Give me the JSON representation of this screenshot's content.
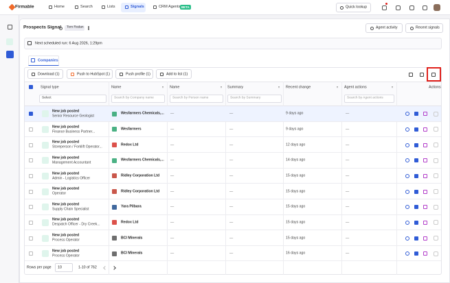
{
  "nav": {
    "brand": "Firmable",
    "items": [
      "Home",
      "Search",
      "Lists",
      "Signals",
      "CRM Agents"
    ],
    "badge": "BETA",
    "quick_lookup": "Quick lookup"
  },
  "header": {
    "title": "Prospects Signal",
    "owner": "Tom Rodan",
    "buttons": [
      "Agent activity",
      "Recent signals"
    ]
  },
  "schedule": "Next scheduled run: 6 Aug 2026, 1:29pm",
  "tab": "Companies",
  "toolbar": [
    "Download (1)",
    "Push to HubSpot (1)",
    "Push profile (1)",
    "Add to list (1)"
  ],
  "table": {
    "columns": [
      "Signal type",
      "Name",
      "Name",
      "Summary",
      "Recent change",
      "Agent actions",
      "Actions"
    ],
    "filters": [
      "Select",
      "Search by Company name",
      "Search by Person name",
      "Search by Summary",
      "Search by Agent actions"
    ],
    "rows": [
      {
        "signal": "New job posted",
        "role": "Senior Resource Geologist",
        "company": "Wesfarmers Chemicals,...",
        "person": "—",
        "summary": "—",
        "recent_change": "9 days ago",
        "agent_actions": "—",
        "selected": true
      },
      {
        "signal": "New job posted",
        "role": "Finance Business Partner...",
        "company": "Wesfarmers",
        "person": "—",
        "summary": "—",
        "recent_change": "9 days ago",
        "agent_actions": "—",
        "selected": false
      },
      {
        "signal": "New job posted",
        "role": "Storeperson / Forklift Operator...",
        "company": "Redox Ltd",
        "person": "—",
        "summary": "—",
        "recent_change": "12 days ago",
        "agent_actions": "—",
        "selected": false
      },
      {
        "signal": "New job posted",
        "role": "Management Accountant",
        "company": "Wesfarmers Chemicals,...",
        "person": "—",
        "summary": "—",
        "recent_change": "14 days ago",
        "agent_actions": "—",
        "selected": false
      },
      {
        "signal": "New job posted",
        "role": "Admin - Logistics Officer",
        "company": "Ridley Corporation Ltd",
        "person": "—",
        "summary": "—",
        "recent_change": "15 days ago",
        "agent_actions": "—",
        "selected": false
      },
      {
        "signal": "New job posted",
        "role": "Operator",
        "company": "Ridley Corporation Ltd",
        "person": "—",
        "summary": "—",
        "recent_change": "15 days ago",
        "agent_actions": "—",
        "selected": false
      },
      {
        "signal": "New job posted",
        "role": "Supply Chain Specialist",
        "company": "Yara Pilbara",
        "person": "—",
        "summary": "—",
        "recent_change": "15 days ago",
        "agent_actions": "—",
        "selected": false
      },
      {
        "signal": "New job posted",
        "role": "Despatch Officer - Dry Creek...",
        "company": "Redox Ltd",
        "person": "—",
        "summary": "—",
        "recent_change": "15 days ago",
        "agent_actions": "—",
        "selected": false
      },
      {
        "signal": "New job posted",
        "role": "Process Operator",
        "company": "BCI Minerals",
        "person": "—",
        "summary": "—",
        "recent_change": "15 days ago",
        "agent_actions": "—",
        "selected": false
      },
      {
        "signal": "New job posted",
        "role": "Process Operator",
        "company": "BCI Minerals",
        "person": "—",
        "summary": "—",
        "recent_change": "16 days ago",
        "agent_actions": "—",
        "selected": false
      }
    ]
  },
  "pagination": {
    "label": "Rows per page",
    "size": "10",
    "range": "1-10 of 762"
  }
}
